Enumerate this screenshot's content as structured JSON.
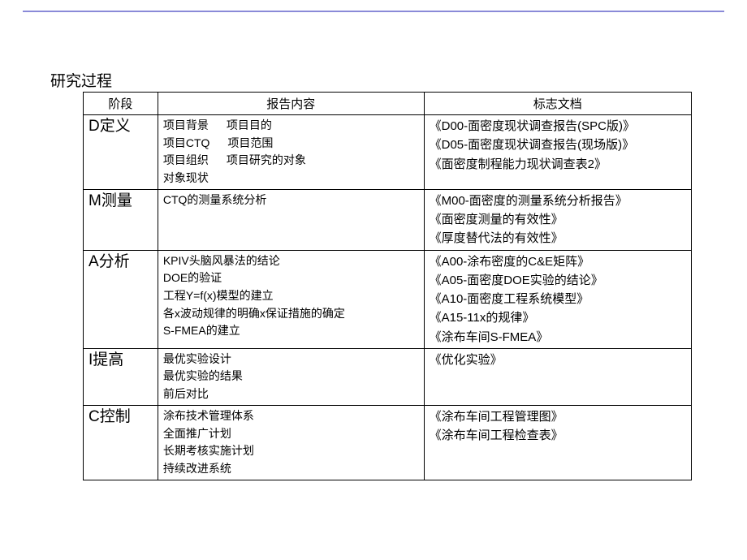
{
  "title": "研究过程",
  "headers": {
    "phase": "阶段",
    "content": "报告内容",
    "docs": "标志文档"
  },
  "rows": [
    {
      "phase": "D定义",
      "content_lines": [
        [
          "项目背景",
          "项目目的"
        ],
        [
          "项目CTQ",
          "项目范围"
        ],
        [
          "项目组织",
          "项目研究的对象"
        ],
        [
          "对象现状"
        ]
      ],
      "docs": [
        "《D00-面密度现状调查报告(SPC版)》",
        "《D05-面密度现状调查报告(现场版)》",
        "《面密度制程能力现状调查表2》"
      ]
    },
    {
      "phase": "M测量",
      "content_lines": [
        [
          "CTQ的测量系统分析"
        ]
      ],
      "docs": [
        "《M00-面密度的测量系统分析报告》",
        "《面密度测量的有效性》",
        "《厚度替代法的有效性》"
      ]
    },
    {
      "phase": "A分析",
      "content_lines": [
        [
          "KPIV头脑风暴法的结论"
        ],
        [
          "DOE的验证"
        ],
        [
          "工程Y=f(x)模型的建立"
        ],
        [
          "各x波动规律的明确x保证措施的确定"
        ],
        [
          "S-FMEA的建立"
        ]
      ],
      "docs": [
        "《A00-涂布密度的C&E矩阵》",
        "《A05-面密度DOE实验的结论》",
        "《A10-面密度工程系统模型》",
        "《A15-11x的规律》",
        "《涂布车间S-FMEA》"
      ]
    },
    {
      "phase": "I提高",
      "content_lines": [
        [
          "最优实验设计"
        ],
        [
          "最优实验的结果"
        ],
        [
          "前后对比"
        ]
      ],
      "docs": [
        "《优化实验》"
      ]
    },
    {
      "phase": "C控制",
      "content_lines": [
        [
          "涂布技术管理体系"
        ],
        [
          "全面推广计划"
        ],
        [
          "长期考核实施计划"
        ],
        [
          "持续改进系统"
        ]
      ],
      "docs": [
        "《涂布车间工程管理图》",
        "《涂布车间工程检查表》"
      ]
    }
  ]
}
